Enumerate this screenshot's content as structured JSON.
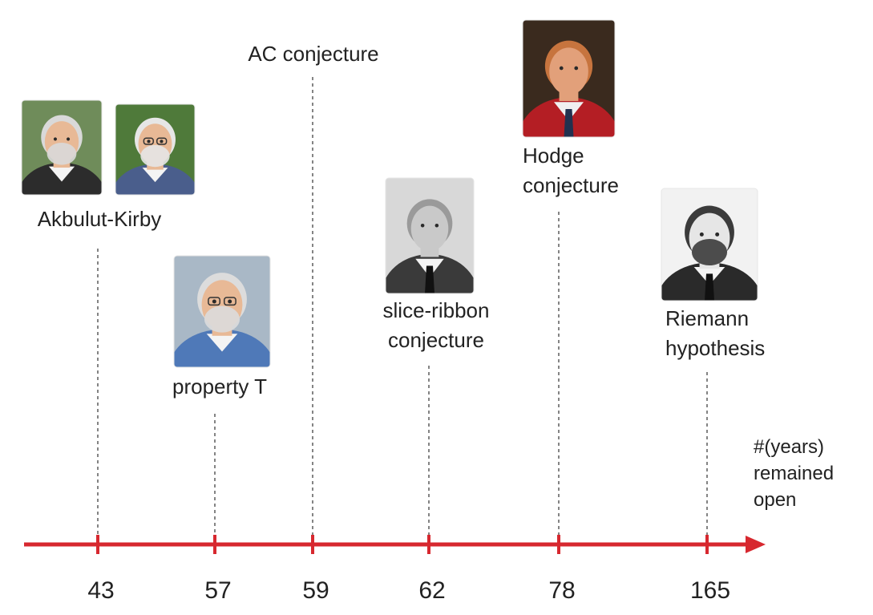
{
  "axis": {
    "label_lines": [
      "#(years)",
      "remained",
      "open"
    ],
    "color": "#d7282f",
    "range": [
      43,
      165
    ]
  },
  "milestones": [
    {
      "value": 43,
      "tick_label": "43",
      "caption_lines": [
        "Akbulut-Kirby"
      ],
      "portraits": [
        {
          "icon": "portrait-akbulut-icon",
          "style": "color-photo",
          "bg": "#6f8c5a",
          "shirt": "#2c2c2c",
          "hair": "#d9d9d9"
        },
        {
          "icon": "portrait-kirby-icon",
          "style": "color-photo",
          "bg": "#4f7a3a",
          "shirt": "#4a5e8c",
          "hair": "#e6e6e6"
        }
      ]
    },
    {
      "value": 57,
      "tick_label": "57",
      "caption_lines": [
        "property T"
      ],
      "portraits": [
        {
          "icon": "portrait-property-t-icon",
          "style": "color-photo",
          "bg": "#a9b8c6",
          "shirt": "#4f79b8",
          "hair": "#dcdcdc"
        }
      ]
    },
    {
      "value": 59,
      "tick_label": "59",
      "caption_lines": [
        "AC conjecture"
      ],
      "portraits": []
    },
    {
      "value": 62,
      "tick_label": "62",
      "caption_lines": [
        "slice-ribbon",
        "conjecture"
      ],
      "portraits": [
        {
          "icon": "portrait-slice-ribbon-icon",
          "style": "bw-photo",
          "bg": "#d8d8d8",
          "shirt": "#3a3a3a",
          "hair": "#9a9a9a"
        }
      ]
    },
    {
      "value": 78,
      "tick_label": "78",
      "caption_lines": [
        "Hodge",
        "conjecture"
      ],
      "portraits": [
        {
          "icon": "portrait-hodge-icon",
          "style": "painting",
          "bg": "#3a2a1e",
          "shirt": "#b41e24",
          "hair": "#c7743e"
        }
      ]
    },
    {
      "value": 165,
      "tick_label": "165",
      "caption_lines": [
        "Riemann",
        "hypothesis"
      ],
      "portraits": [
        {
          "icon": "portrait-riemann-icon",
          "style": "engraving",
          "bg": "#f2f2f2",
          "shirt": "#2a2a2a",
          "hair": "#3b3b3b"
        }
      ]
    }
  ]
}
